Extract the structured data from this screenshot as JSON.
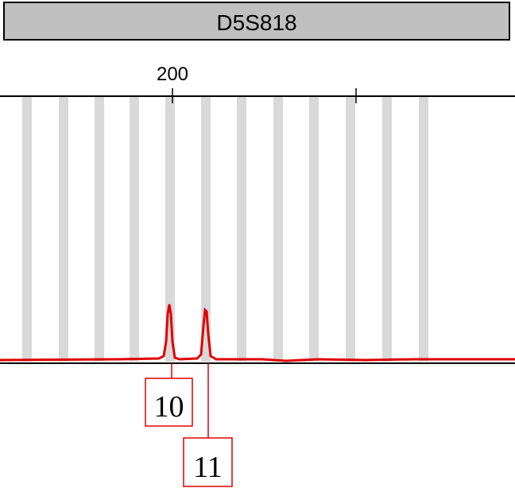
{
  "locus": "D5S818",
  "axis_label": "200",
  "alleles": [
    "10",
    "11"
  ]
}
